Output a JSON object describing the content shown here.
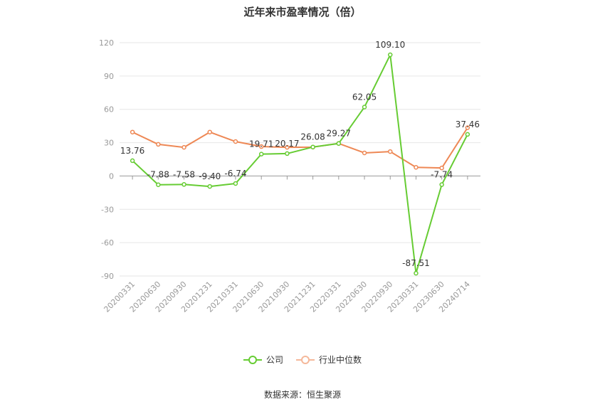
{
  "chart_data": {
    "type": "line",
    "title": "近年来市盈率情况（倍）",
    "categories": [
      "20200331",
      "20200630",
      "20200930",
      "20201231",
      "20210331",
      "20210630",
      "20210930",
      "20211231",
      "20220331",
      "20220630",
      "20220930",
      "20230331",
      "20230630",
      "20240714"
    ],
    "series": [
      {
        "name": "公司",
        "color": "#66cc33",
        "values": [
          13.76,
          -7.88,
          -7.58,
          -9.4,
          -6.74,
          19.71,
          20.17,
          26.08,
          29.27,
          62.05,
          109.1,
          -87.51,
          -7.74,
          37.46
        ],
        "labels": [
          "13.76",
          "-7.88",
          "-7.58",
          "-9.40",
          "-6.74",
          "19.71",
          "20.17",
          "26.08",
          "29.27",
          "62.05",
          "109.10",
          "-87.51",
          "-7.74",
          "37.46"
        ]
      },
      {
        "name": "行业中位数",
        "color": "#ee8855",
        "values": [
          39.5,
          28.5,
          25.8,
          39.5,
          31.0,
          26.5,
          25.8,
          26.0,
          29.3,
          20.8,
          22.0,
          7.8,
          7.2,
          43.5
        ]
      }
    ],
    "y_ticks": [
      "120",
      "90",
      "60",
      "30",
      "0",
      "-30",
      "-60",
      "-90"
    ],
    "ylim": [
      -90,
      120
    ],
    "grid": true,
    "legend_position": "bottom"
  },
  "source_text": "数据来源：恒生聚源"
}
